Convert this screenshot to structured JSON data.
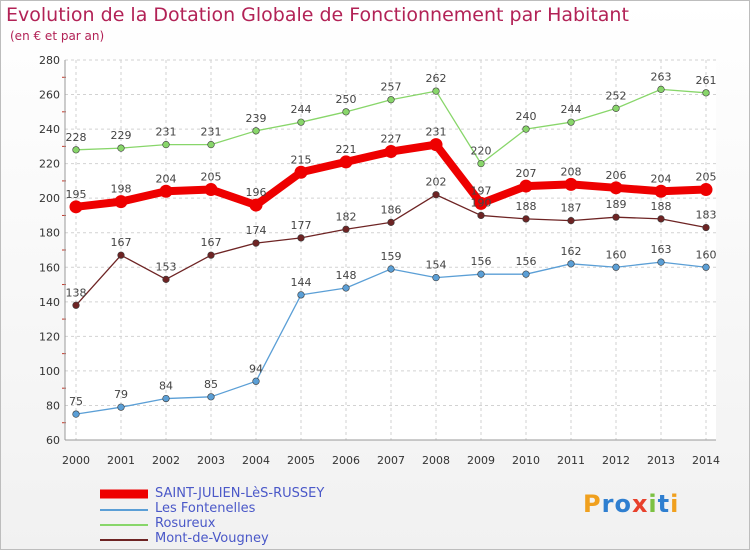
{
  "title": "Evolution de la Dotation Globale de Fonctionnement par Habitant",
  "subtitle": "(en € et par an)",
  "logo_text": "Proxiti",
  "chart_data": {
    "type": "line",
    "title": "Evolution de la Dotation Globale de Fonctionnement par Habitant",
    "ylabel": "(en € et par an)",
    "xlabel": "",
    "ylim": [
      60,
      280
    ],
    "yticks": [
      60,
      80,
      100,
      120,
      140,
      160,
      180,
      200,
      220,
      240,
      260,
      280
    ],
    "grid": true,
    "legend_position": "bottom-left",
    "categories": [
      "2000",
      "2001",
      "2002",
      "2003",
      "2004",
      "2005",
      "2006",
      "2007",
      "2008",
      "2009",
      "2010",
      "2011",
      "2012",
      "2013",
      "2014"
    ],
    "series": [
      {
        "name": "SAINT-JULIEN-LèS-RUSSEY",
        "color": "#ee0000",
        "emphasis": true,
        "values": [
          195,
          198,
          204,
          205,
          196,
          215,
          221,
          227,
          231,
          197,
          207,
          208,
          206,
          204,
          205
        ]
      },
      {
        "name": "Les Fontenelles",
        "color": "#5b9fd6",
        "emphasis": false,
        "values": [
          75,
          79,
          84,
          85,
          94,
          144,
          148,
          159,
          154,
          156,
          156,
          162,
          160,
          163,
          160
        ]
      },
      {
        "name": "Rosureux",
        "color": "#88d66a",
        "emphasis": false,
        "values": [
          228,
          229,
          231,
          231,
          239,
          244,
          250,
          257,
          262,
          220,
          240,
          244,
          252,
          263,
          261
        ]
      },
      {
        "name": "Mont-de-Vougney",
        "color": "#6e2424",
        "emphasis": false,
        "values": [
          138,
          167,
          153,
          167,
          174,
          177,
          182,
          186,
          202,
          190,
          188,
          187,
          189,
          188,
          183
        ]
      }
    ]
  }
}
